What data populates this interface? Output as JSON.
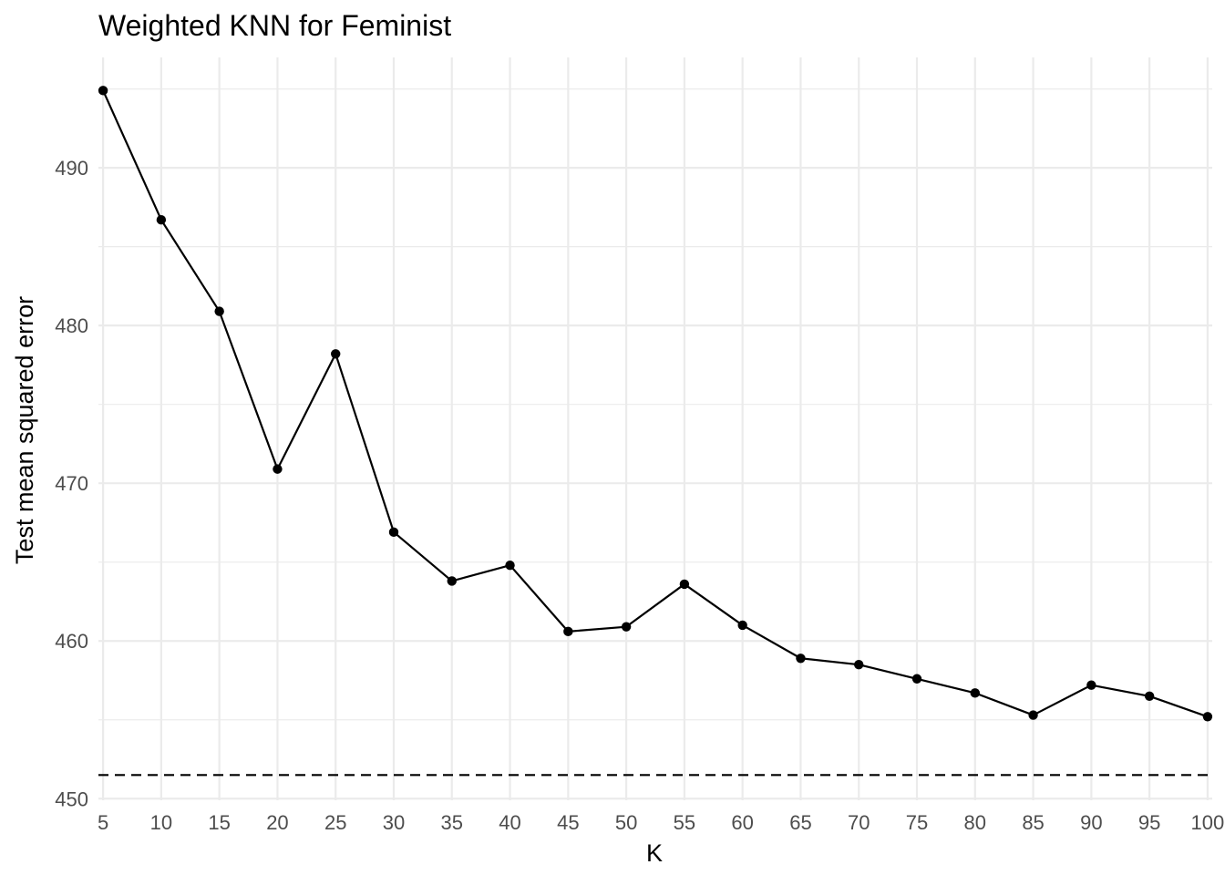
{
  "chart_data": {
    "type": "line",
    "title": "Weighted KNN for Feminist",
    "xlabel": "K",
    "ylabel": "Test mean squared error",
    "x": [
      5,
      10,
      15,
      20,
      25,
      30,
      35,
      40,
      45,
      50,
      55,
      60,
      65,
      70,
      75,
      80,
      85,
      90,
      95,
      100
    ],
    "series": [
      {
        "values": [
          494.9,
          486.7,
          480.9,
          470.9,
          478.2,
          466.9,
          463.8,
          464.8,
          460.6,
          460.9,
          463.6,
          461.0,
          458.9,
          458.5,
          457.6,
          456.7,
          455.3,
          457.2,
          456.5,
          455.2
        ],
        "color": "#000000"
      }
    ],
    "reference_line": {
      "y": 451.5,
      "style": "dashed",
      "color": "#000000"
    },
    "x_ticks": [
      5,
      10,
      15,
      20,
      25,
      30,
      35,
      40,
      45,
      50,
      55,
      60,
      65,
      70,
      75,
      80,
      85,
      90,
      95,
      100
    ],
    "y_ticks": [
      450,
      460,
      470,
      480,
      490
    ],
    "xlim": [
      4.6,
      100.4
    ],
    "ylim": [
      449.9,
      497
    ],
    "grid": true,
    "legend": "none",
    "colors": {
      "grid": "#ebebeb",
      "tick_text": "#4d4d4d",
      "line": "#000000"
    }
  }
}
